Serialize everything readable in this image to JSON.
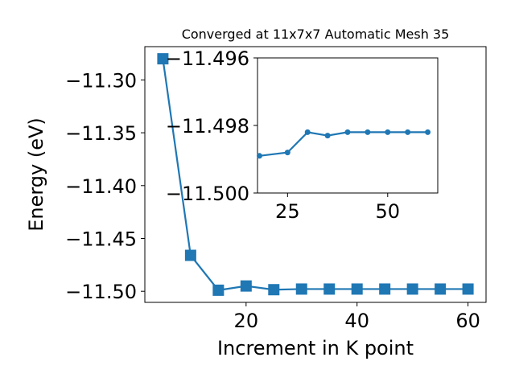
{
  "chart_data": [
    {
      "type": "line",
      "title": "Converged at 11x7x7 Automatic Mesh 35",
      "xlabel": "Increment in K point",
      "ylabel": "Energy (eV)",
      "xlim": [
        1.75,
        63.25
      ],
      "ylim": [
        -11.5105,
        -11.2685
      ],
      "xticks": [
        20,
        40,
        60
      ],
      "yticks": [
        -11.3,
        -11.35,
        -11.4,
        -11.45,
        -11.5
      ],
      "ytick_labels": [
        "−11.30",
        "−11.35",
        "−11.40",
        "−11.45",
        "−11.50"
      ],
      "color": "#1f77b4",
      "marker": "square",
      "grid": false,
      "series": [
        {
          "x": [
            5,
            10,
            15,
            20,
            25,
            30,
            35,
            40,
            45,
            50,
            55,
            60
          ],
          "y": [
            -11.28,
            -11.466,
            -11.499,
            -11.495,
            -11.4985,
            -11.4979,
            -11.4979,
            -11.4979,
            -11.4979,
            -11.4979,
            -11.4979,
            -11.4979
          ]
        }
      ]
    },
    {
      "type": "line",
      "title": "",
      "xlabel": "",
      "ylabel": "",
      "inset": true,
      "xlim": [
        17.5,
        62.5
      ],
      "ylim": [
        -11.5,
        -11.496
      ],
      "xticks": [
        25,
        50
      ],
      "yticks": [
        -11.5,
        -11.498,
        -11.496
      ],
      "ytick_labels": [
        "−11.500",
        "−11.498",
        "−11.496"
      ],
      "color": "#1f77b4",
      "marker": "circle",
      "grid": false,
      "series": [
        {
          "x": [
            18,
            25,
            30,
            35,
            40,
            45,
            50,
            55,
            60
          ],
          "y": [
            -11.4989,
            -11.4988,
            -11.4982,
            -11.4983,
            -11.4982,
            -11.4982,
            -11.4982,
            -11.4982,
            -11.4982
          ]
        }
      ]
    }
  ]
}
